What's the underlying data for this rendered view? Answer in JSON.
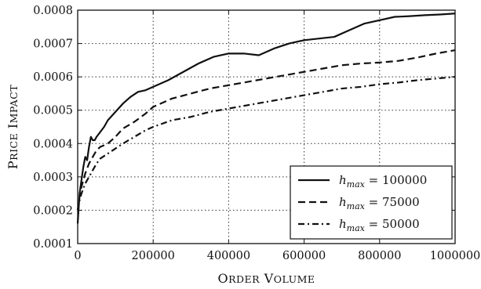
{
  "chart_data": {
    "type": "line",
    "xlabel": "Order Volume",
    "ylabel": "Price Impact",
    "xlim": [
      0,
      1000000
    ],
    "ylim": [
      0.0001,
      0.0008
    ],
    "x_ticks": [
      0,
      200000,
      400000,
      600000,
      800000,
      1000000
    ],
    "x_tick_labels": [
      "0",
      "200000",
      "400000",
      "600000",
      "800000",
      "1000000"
    ],
    "y_ticks": [
      0.0001,
      0.0002,
      0.0003,
      0.0004,
      0.0005,
      0.0006,
      0.0007,
      0.0008
    ],
    "y_tick_labels": [
      "0.0001",
      "0.0002",
      "0.0003",
      "0.0004",
      "0.0005",
      "0.0006",
      "0.0007",
      "0.0008"
    ],
    "grid": true,
    "legend_position": "bottom-right",
    "series": [
      {
        "name": "h_max = 100000",
        "legend_label": "h",
        "legend_subscript": "max",
        "legend_value": "= 100000",
        "style": "solid",
        "x": [
          0,
          5000,
          10000,
          15000,
          20000,
          25000,
          30000,
          35000,
          40000,
          45000,
          50000,
          60000,
          70000,
          80000,
          100000,
          120000,
          140000,
          160000,
          180000,
          200000,
          240000,
          280000,
          320000,
          360000,
          400000,
          440000,
          480000,
          520000,
          560000,
          600000,
          640000,
          680000,
          720000,
          760000,
          800000,
          840000,
          880000,
          920000,
          960000,
          1000000
        ],
        "y": [
          0.00016,
          0.00025,
          0.00029,
          0.00033,
          0.00036,
          0.00035,
          0.00039,
          0.00042,
          0.00041,
          0.00041,
          0.00042,
          0.000435,
          0.00045,
          0.00047,
          0.000495,
          0.00052,
          0.00054,
          0.000555,
          0.00056,
          0.00057,
          0.00059,
          0.000615,
          0.00064,
          0.00066,
          0.00067,
          0.00067,
          0.000665,
          0.000685,
          0.0007,
          0.00071,
          0.000715,
          0.00072,
          0.00074,
          0.00076,
          0.00077,
          0.00078,
          0.000782,
          0.000785,
          0.000787,
          0.00079
        ]
      },
      {
        "name": "h_max = 75000",
        "legend_label": "h",
        "legend_subscript": "max",
        "legend_value": "= 75000",
        "style": "dashed",
        "x": [
          0,
          5000,
          10000,
          20000,
          30000,
          40000,
          50000,
          60000,
          80000,
          100000,
          120000,
          150000,
          180000,
          200000,
          250000,
          300000,
          350000,
          400000,
          450000,
          500000,
          550000,
          600000,
          650000,
          700000,
          750000,
          800000,
          850000,
          900000,
          950000,
          1000000
        ],
        "y": [
          0.0002,
          0.00024,
          0.00027,
          0.00031,
          0.00034,
          0.00036,
          0.00038,
          0.00039,
          0.0004,
          0.00042,
          0.000445,
          0.000465,
          0.00049,
          0.00051,
          0.000535,
          0.00055,
          0.000565,
          0.000575,
          0.000585,
          0.000595,
          0.000605,
          0.000615,
          0.000625,
          0.000635,
          0.00064,
          0.000643,
          0.000648,
          0.000658,
          0.00067,
          0.00068
        ]
      },
      {
        "name": "h_max = 50000",
        "legend_label": "h",
        "legend_subscript": "max",
        "legend_value": "= 50000",
        "style": "dash-dot",
        "x": [
          0,
          5000,
          10000,
          20000,
          30000,
          40000,
          50000,
          60000,
          80000,
          100000,
          120000,
          150000,
          180000,
          200000,
          250000,
          300000,
          350000,
          400000,
          450000,
          500000,
          550000,
          600000,
          650000,
          700000,
          750000,
          800000,
          850000,
          900000,
          950000,
          1000000
        ],
        "y": [
          0.0002,
          0.00023,
          0.00025,
          0.00028,
          0.0003,
          0.00032,
          0.00034,
          0.000355,
          0.00037,
          0.000385,
          0.0004,
          0.00042,
          0.00044,
          0.00045,
          0.00047,
          0.00048,
          0.000495,
          0.000505,
          0.000515,
          0.000525,
          0.000535,
          0.000545,
          0.000555,
          0.000565,
          0.00057,
          0.000578,
          0.000583,
          0.00059,
          0.000595,
          0.0006
        ]
      }
    ]
  }
}
